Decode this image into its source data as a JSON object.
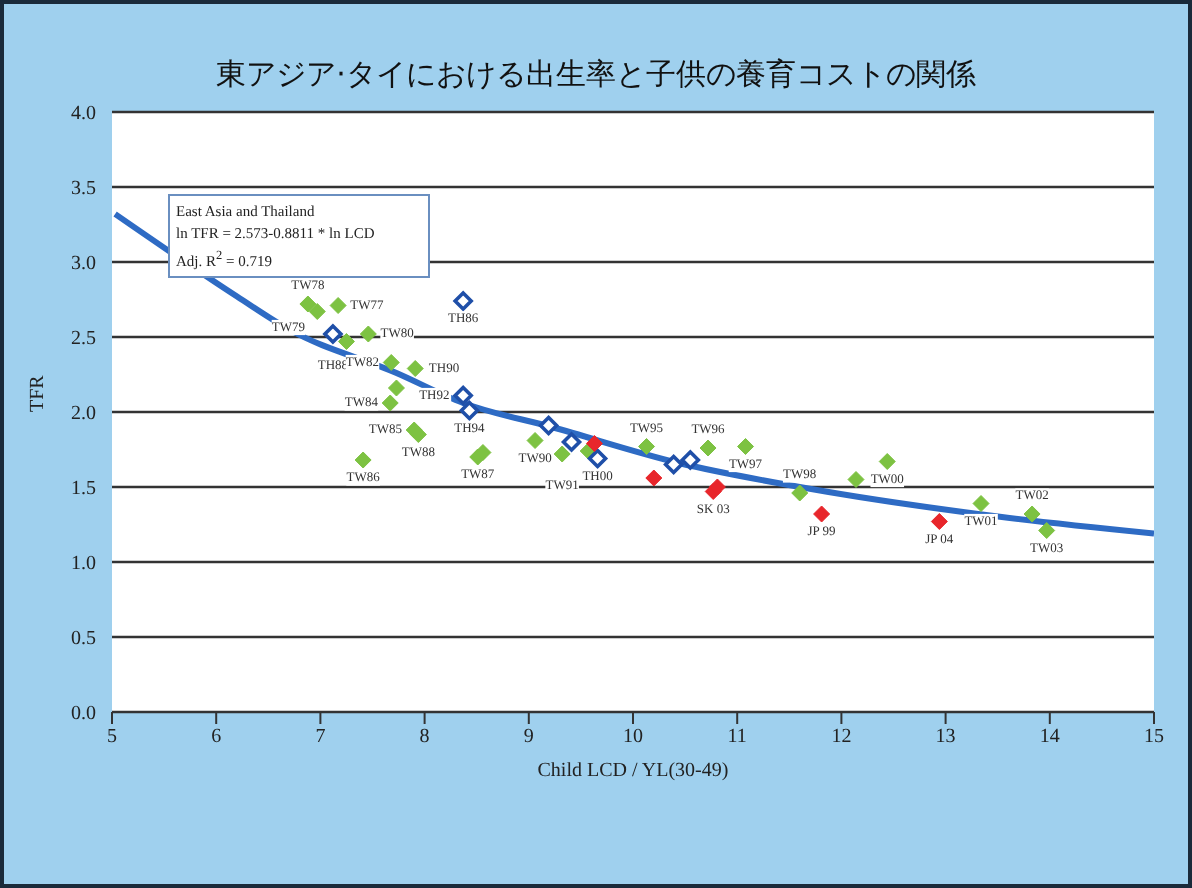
{
  "chart_data": {
    "type": "scatter",
    "title": "東アジア·タイにおける出生率と子供の養育コストの関係",
    "xlabel": "Child LCD / YL(30-49)",
    "ylabel": "TFR",
    "xlim": [
      5,
      15
    ],
    "xticks": [
      5,
      6,
      7,
      8,
      9,
      10,
      11,
      12,
      13,
      14,
      15
    ],
    "ylim": [
      0,
      4
    ],
    "yticks": [
      {
        "value": 0,
        "label": "0.0"
      },
      {
        "value": 0.5,
        "label": "0.5"
      },
      {
        "value": 1,
        "label": "1.0"
      },
      {
        "value": 1.5,
        "label": "1.5"
      },
      {
        "value": 2,
        "label": "2.0"
      },
      {
        "value": 2.5,
        "label": "2.5"
      },
      {
        "value": 3,
        "label": "3.0"
      },
      {
        "value": 3.5,
        "label": "3.5"
      },
      {
        "value": 4,
        "label": "4.0"
      }
    ],
    "grid": "y",
    "marker": "diamond",
    "legend": false,
    "series": [
      {
        "color": "#7dc242",
        "x": [
          6.88,
          6.97,
          7.17,
          7.25,
          7.46,
          7.68,
          7.91,
          7.73,
          7.67,
          7.9,
          7.94,
          7.41,
          8.51,
          8.56,
          9.06,
          9.32,
          9.57,
          10.13,
          10.72,
          11.08,
          11.6,
          12.14,
          12.44,
          13.34,
          13.83,
          13.97
        ],
        "values": [
          2.72,
          2.67,
          2.71,
          2.47,
          2.52,
          2.33,
          2.29,
          2.16,
          2.06,
          1.88,
          1.85,
          1.68,
          1.7,
          1.73,
          1.81,
          1.72,
          1.74,
          1.77,
          1.76,
          1.77,
          1.46,
          1.55,
          1.67,
          1.39,
          1.32,
          1.21
        ]
      },
      {
        "color": "#1f4fa8",
        "x": [
          7.12,
          8.37,
          8.37,
          8.43,
          9.19,
          9.41,
          9.66,
          10.39,
          10.55
        ],
        "values": [
          2.52,
          2.74,
          2.11,
          2.01,
          1.91,
          1.8,
          1.69,
          1.65,
          1.68
        ]
      },
      {
        "color": "#e8262b",
        "x": [
          9.63,
          10.2,
          10.77,
          10.81,
          11.81,
          12.94
        ],
        "values": [
          1.79,
          1.56,
          1.47,
          1.5,
          1.32,
          1.27
        ]
      },
      {
        "type": "line",
        "color": "#2e6bc4",
        "marker": "none",
        "x": [
          5.03,
          6.2,
          6.7,
          7.73,
          8.37,
          9.22,
          10.44,
          11.6,
          13.54,
          15
        ],
        "values": [
          3.32,
          2.77,
          2.55,
          2.26,
          2.06,
          1.9,
          1.66,
          1.5,
          1.3,
          1.19
        ]
      }
    ],
    "annotations": [
      "East Asia and Thailand",
      "ln TFR = 2.573-0.8811 * ln LCD",
      "Adj. R$^{2}$ = 0.719",
      {
        "text": "TW78",
        "x": 6.88,
        "y": 2.72
      },
      {
        "text": "TW77",
        "x": 7.17,
        "y": 2.71
      },
      {
        "text": "TW79",
        "x": 6.97,
        "y": 2.67
      },
      {
        "text": "TH88",
        "x": 7.12,
        "y": 2.52
      },
      {
        "text": "TW80",
        "x": 7.46,
        "y": 2.52
      },
      {
        "text": "TW82",
        "x": 7.68,
        "y": 2.33
      },
      {
        "text": "TH90",
        "x": 7.91,
        "y": 2.29
      },
      {
        "text": "TW84",
        "x": 7.67,
        "y": 2.06
      },
      {
        "text": "TH92",
        "x": 8.37,
        "y": 2.11
      },
      {
        "text": "TH94",
        "x": 8.43,
        "y": 2.01
      },
      {
        "text": "TH86",
        "x": 8.37,
        "y": 2.74
      },
      {
        "text": "TW85",
        "x": 7.9,
        "y": 1.88
      },
      {
        "text": "TW88",
        "x": 7.94,
        "y": 1.85
      },
      {
        "text": "TW86",
        "x": 7.41,
        "y": 1.68
      },
      {
        "text": "TW87",
        "x": 8.51,
        "y": 1.7
      },
      {
        "text": "TW90",
        "x": 9.06,
        "y": 1.81
      },
      {
        "text": "TW91",
        "x": 9.32,
        "y": 1.72
      },
      {
        "text": "TH00",
        "x": 9.66,
        "y": 1.69
      },
      {
        "text": "TW95",
        "x": 10.13,
        "y": 1.77
      },
      {
        "text": "TW96",
        "x": 10.72,
        "y": 1.76
      },
      {
        "text": "TW97",
        "x": 11.08,
        "y": 1.77
      },
      {
        "text": "SK 03",
        "x": 10.77,
        "y": 1.47
      },
      {
        "text": "TW98",
        "x": 11.6,
        "y": 1.46
      },
      {
        "text": "JP 99",
        "x": 11.81,
        "y": 1.32
      },
      {
        "text": "TW00",
        "x": 12.44,
        "y": 1.67
      },
      {
        "text": "JP 04",
        "x": 12.94,
        "y": 1.27
      },
      {
        "text": "TW01",
        "x": 13.34,
        "y": 1.39
      },
      {
        "text": "TW02",
        "x": 13.83,
        "y": 1.32
      },
      {
        "text": "TW03",
        "x": 13.97,
        "y": 1.21
      }
    ]
  }
}
